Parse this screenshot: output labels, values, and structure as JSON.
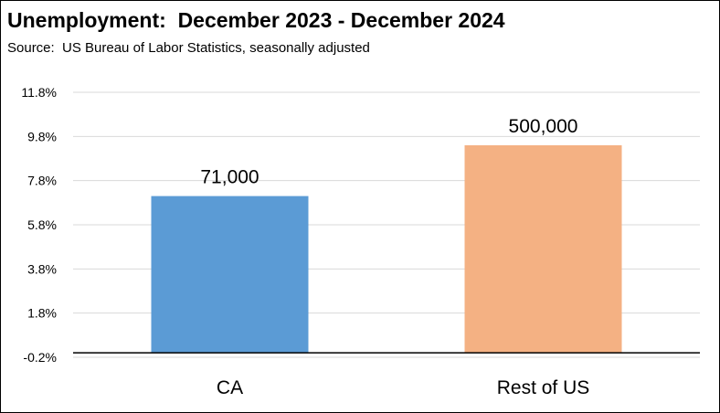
{
  "chart_data": {
    "type": "bar",
    "title": "Unemployment:  December 2023 - December 2024",
    "subtitle": "Source:  US Bureau of Labor Statistics, seasonally adjusted",
    "categories": [
      "CA",
      "Rest of US"
    ],
    "values": [
      7.1,
      9.4
    ],
    "data_labels": [
      "71,000",
      "500,000"
    ],
    "colors": [
      "#5B9BD5",
      "#F4B183"
    ],
    "yticks": [
      "11.8%",
      "9.8%",
      "7.8%",
      "5.8%",
      "3.8%",
      "1.8%",
      "-0.2%"
    ],
    "ytick_values": [
      11.8,
      9.8,
      7.8,
      5.8,
      3.8,
      1.8,
      -0.2
    ],
    "ylim": [
      -0.2,
      11.8
    ],
    "baseline": 0,
    "grid": true,
    "legend": "none"
  }
}
